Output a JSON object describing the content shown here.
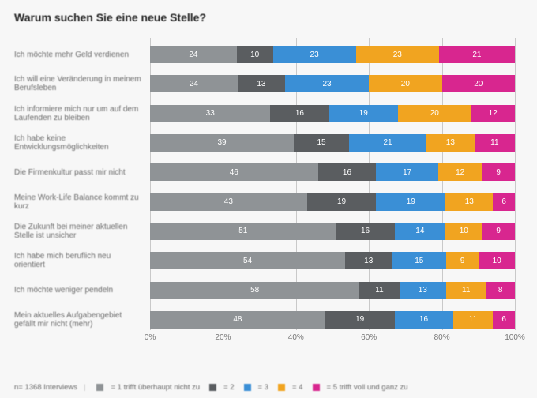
{
  "title": "Warum suchen Sie eine neue Stelle?",
  "footer_n": "n= 1368 Interviews",
  "colors": {
    "c1": "#8f9396",
    "c2": "#5a5d60",
    "c3": "#3a8fd6",
    "c4": "#f1a420",
    "c5": "#d8268f",
    "grid": "#c9c9c9",
    "bg": "#f7f7f7"
  },
  "legend": [
    {
      "key": "c1",
      "label": "= 1 trifft überhaupt nicht zu"
    },
    {
      "key": "c2",
      "label": "= 2"
    },
    {
      "key": "c3",
      "label": "= 3"
    },
    {
      "key": "c4",
      "label": "= 4"
    },
    {
      "key": "c5",
      "label": "= 5 trifft voll und ganz zu"
    }
  ],
  "axis": {
    "min": 0,
    "max": 100,
    "ticks": [
      0,
      20,
      40,
      60,
      80,
      100
    ],
    "suffix": "%"
  },
  "rows": [
    {
      "label": "Ich möchte mehr Geld verdienen",
      "v": [
        24,
        10,
        23,
        23,
        21
      ]
    },
    {
      "label": "Ich will eine Veränderung in meinem Berufsleben",
      "v": [
        24,
        13,
        23,
        20,
        20
      ]
    },
    {
      "label": "Ich informiere mich nur um auf dem Laufenden zu bleiben",
      "v": [
        33,
        16,
        19,
        20,
        12
      ]
    },
    {
      "label": "Ich habe keine Entwicklungsmöglichkeiten",
      "v": [
        39,
        15,
        21,
        13,
        11
      ]
    },
    {
      "label": "Die Firmenkultur passt mir nicht",
      "v": [
        46,
        16,
        17,
        12,
        9
      ]
    },
    {
      "label": "Meine Work-Life Balance kommt zu kurz",
      "v": [
        43,
        19,
        19,
        13,
        6
      ]
    },
    {
      "label": "Die Zukunft bei meiner aktuellen Stelle ist unsicher",
      "v": [
        51,
        16,
        14,
        10,
        9
      ]
    },
    {
      "label": "Ich habe mich beruflich neu orientiert",
      "v": [
        54,
        13,
        15,
        9,
        10
      ]
    },
    {
      "label": "Ich möchte weniger pendeln",
      "v": [
        58,
        11,
        13,
        11,
        8
      ]
    },
    {
      "label": "Mein aktuelles Aufgabengebiet gefällt mir nicht (mehr)",
      "v": [
        48,
        19,
        16,
        11,
        6
      ]
    }
  ]
}
